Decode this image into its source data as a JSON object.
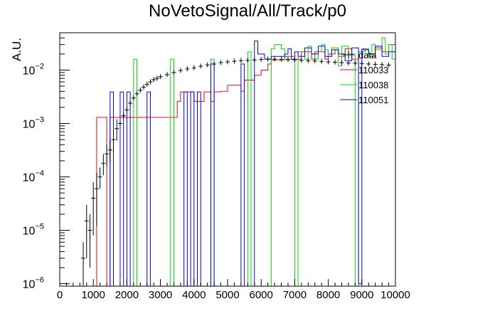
{
  "chart_data": {
    "type": "histogram",
    "title": "NoVetoSignal/All/Track/p0",
    "xlabel": "",
    "ylabel": "A.U.",
    "xlim": [
      0,
      10000
    ],
    "ylim": [
      9e-07,
      0.05
    ],
    "yscale": "log",
    "x_ticks": [
      "0",
      "1000",
      "2000",
      "3000",
      "4000",
      "5000",
      "6000",
      "7000",
      "8000",
      "9000",
      "10000"
    ],
    "y_ticks": [
      {
        "base": "10",
        "exp": "−6",
        "value": 1e-06
      },
      {
        "base": "10",
        "exp": "−5",
        "value": 1e-05
      },
      {
        "base": "10",
        "exp": "−4",
        "value": 0.0001
      },
      {
        "base": "10",
        "exp": "−3",
        "value": 0.001
      },
      {
        "base": "10",
        "exp": "−2",
        "value": 0.01
      }
    ],
    "legend": {
      "placement": "top-right",
      "entries": [
        {
          "name": "data",
          "color": "#000000",
          "style": "errorbar"
        },
        {
          "name": "110033",
          "color": "#ff0000",
          "style": "line"
        },
        {
          "name": "110038",
          "color": "#00dd00",
          "style": "line"
        },
        {
          "name": "110051",
          "color": "#0000ff",
          "style": "line"
        }
      ]
    },
    "series": [
      {
        "name": "data",
        "color": "#000000",
        "style": "errorbar",
        "x": [
          700,
          800,
          900,
          1000,
          1100,
          1200,
          1300,
          1400,
          1500,
          1600,
          1700,
          1800,
          1900,
          2000,
          2100,
          2200,
          2300,
          2400,
          2500,
          2600,
          2700,
          2800,
          2900,
          3000,
          3200,
          3400,
          3600,
          3800,
          4000,
          4200,
          4400,
          4600,
          4800,
          5000,
          5200,
          5400,
          5600,
          5800,
          6000,
          6200,
          6400,
          6600,
          6800,
          7000,
          7200,
          7400,
          7600,
          7800,
          8000,
          8200,
          8400,
          8600,
          8800,
          9000,
          9200,
          9400,
          9600,
          9800
        ],
        "y": [
          3e-06,
          1.5e-05,
          1e-05,
          4e-05,
          6e-05,
          0.0001,
          0.00018,
          0.00027,
          0.00032,
          0.0005,
          0.0008,
          0.001,
          0.0014,
          0.0018,
          0.0024,
          0.003,
          0.0036,
          0.0042,
          0.0048,
          0.0054,
          0.006,
          0.0066,
          0.007,
          0.0075,
          0.0082,
          0.009,
          0.0098,
          0.0105,
          0.011,
          0.0118,
          0.0125,
          0.013,
          0.0138,
          0.0142,
          0.0146,
          0.015,
          0.0152,
          0.0155,
          0.0158,
          0.016,
          0.016,
          0.0158,
          0.0156,
          0.0155,
          0.0152,
          0.015,
          0.0148,
          0.0145,
          0.0142,
          0.014,
          0.0138,
          0.0136,
          0.0134,
          0.0132,
          0.013,
          0.0128,
          0.0126,
          0.0124
        ]
      },
      {
        "name": "110033",
        "color": "#ff0000",
        "style": "step",
        "edges": [
          0,
          1100,
          1400,
          1500,
          3500,
          3600,
          4000,
          4300,
          4500,
          4600,
          4800,
          5000,
          5400,
          5500,
          5800,
          6000,
          6200,
          6300,
          6700,
          7000,
          7200,
          7500,
          7600,
          7900,
          8000,
          8200,
          8300,
          8500,
          8700,
          8900,
          9000,
          9200,
          9400,
          9600,
          9800,
          10000
        ],
        "values": [
          0,
          0.0013,
          0,
          0.0013,
          0.0026,
          0.0039,
          0.0026,
          0.0039,
          0.0026,
          0.0039,
          0.004,
          0.0052,
          0.004,
          0.0065,
          0.008,
          0.01,
          0.013,
          0.0155,
          0.018,
          0.016,
          0.022,
          0.016,
          0.022,
          0.016,
          0.02,
          0.024,
          0.018,
          0.025,
          0.016,
          0.022,
          0.025,
          0.018,
          0.026,
          0.022,
          0.03
        ]
      },
      {
        "name": "110038",
        "color": "#00dd00",
        "style": "step",
        "edges": [
          0,
          2200,
          2300,
          3300,
          3400,
          4500,
          4600,
          5600,
          5700,
          6300,
          6400,
          6600,
          6700,
          7000,
          7100,
          7300,
          7400,
          7500,
          7600,
          7700,
          7800,
          7900,
          8000,
          8100,
          8300,
          8400,
          8600,
          8800,
          8900,
          9100,
          9200,
          9300,
          9400,
          9600,
          9700,
          9800,
          9900,
          10000
        ],
        "values": [
          0,
          0.016,
          0,
          0.016,
          0,
          0.016,
          0,
          0.022,
          0,
          0.025,
          0.03,
          0.025,
          0.016,
          0,
          0.022,
          0.016,
          0.028,
          0.02,
          0.016,
          0.022,
          0.03,
          0.024,
          0.018,
          0.026,
          0.012,
          0.028,
          0.02,
          0,
          0.022,
          0.025,
          0.018,
          0.03,
          0.024,
          0.04,
          0.02,
          0.03,
          0.016
        ]
      },
      {
        "name": "110051",
        "color": "#0000ff",
        "style": "step",
        "edges": [
          0,
          1500,
          1600,
          1800,
          1900,
          2000,
          2100,
          2600,
          2700,
          3700,
          3800,
          3900,
          4000,
          4100,
          4200,
          4500,
          4600,
          5400,
          5500,
          5800,
          5900,
          6100,
          6300,
          6700,
          6800,
          6900,
          7000,
          7100,
          7300,
          7500,
          7700,
          7900,
          8100,
          8300,
          8500,
          8700,
          8900,
          9000,
          9200,
          9400,
          9600,
          9800,
          10000
        ],
        "values": [
          0,
          0.0039,
          0,
          0.0039,
          0,
          0.0039,
          0,
          0.0039,
          0,
          0.0039,
          0,
          0.0039,
          0,
          0.0039,
          0,
          0.013,
          0,
          0.013,
          0,
          0.035,
          0.02,
          0.016,
          0.018,
          0.02,
          0.025,
          0.016,
          0.022,
          0.018,
          0.026,
          0.02,
          0.028,
          0.018,
          0.024,
          0.02,
          0.015,
          0.026,
          1e-06,
          0.024,
          0.02,
          0.028,
          0.018,
          0.022
        ]
      }
    ]
  }
}
